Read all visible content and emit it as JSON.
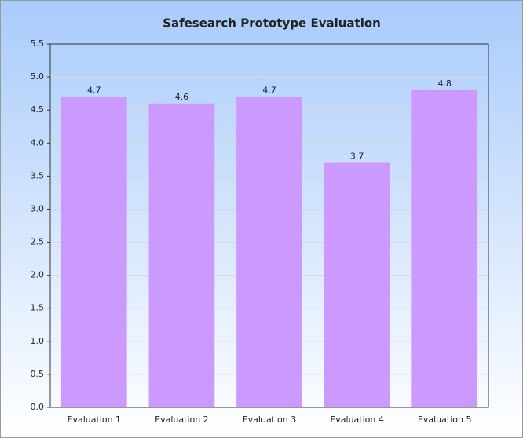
{
  "chart_data": {
    "type": "bar",
    "title": "Safesearch Prototype Evaluation",
    "categories": [
      "Evaluation 1",
      "Evaluation 2",
      "Evaluation 3",
      "Evaluation 4",
      "Evaluation 5"
    ],
    "values": [
      4.7,
      4.6,
      4.7,
      3.7,
      4.8
    ],
    "color": "#cc99ff",
    "ylim": [
      0,
      5.5
    ],
    "yticks": [
      {
        "value": 0,
        "label": "0.0"
      },
      0.5,
      {
        "value": 1,
        "label": "1.0"
      },
      1.5,
      {
        "value": 2,
        "label": "2.0"
      },
      2.5,
      {
        "value": 3,
        "label": "3.0"
      },
      3.5,
      {
        "value": 4,
        "label": "4.0"
      },
      4.5,
      {
        "value": 5,
        "label": "5.0"
      },
      5.5
    ],
    "grid": true
  }
}
